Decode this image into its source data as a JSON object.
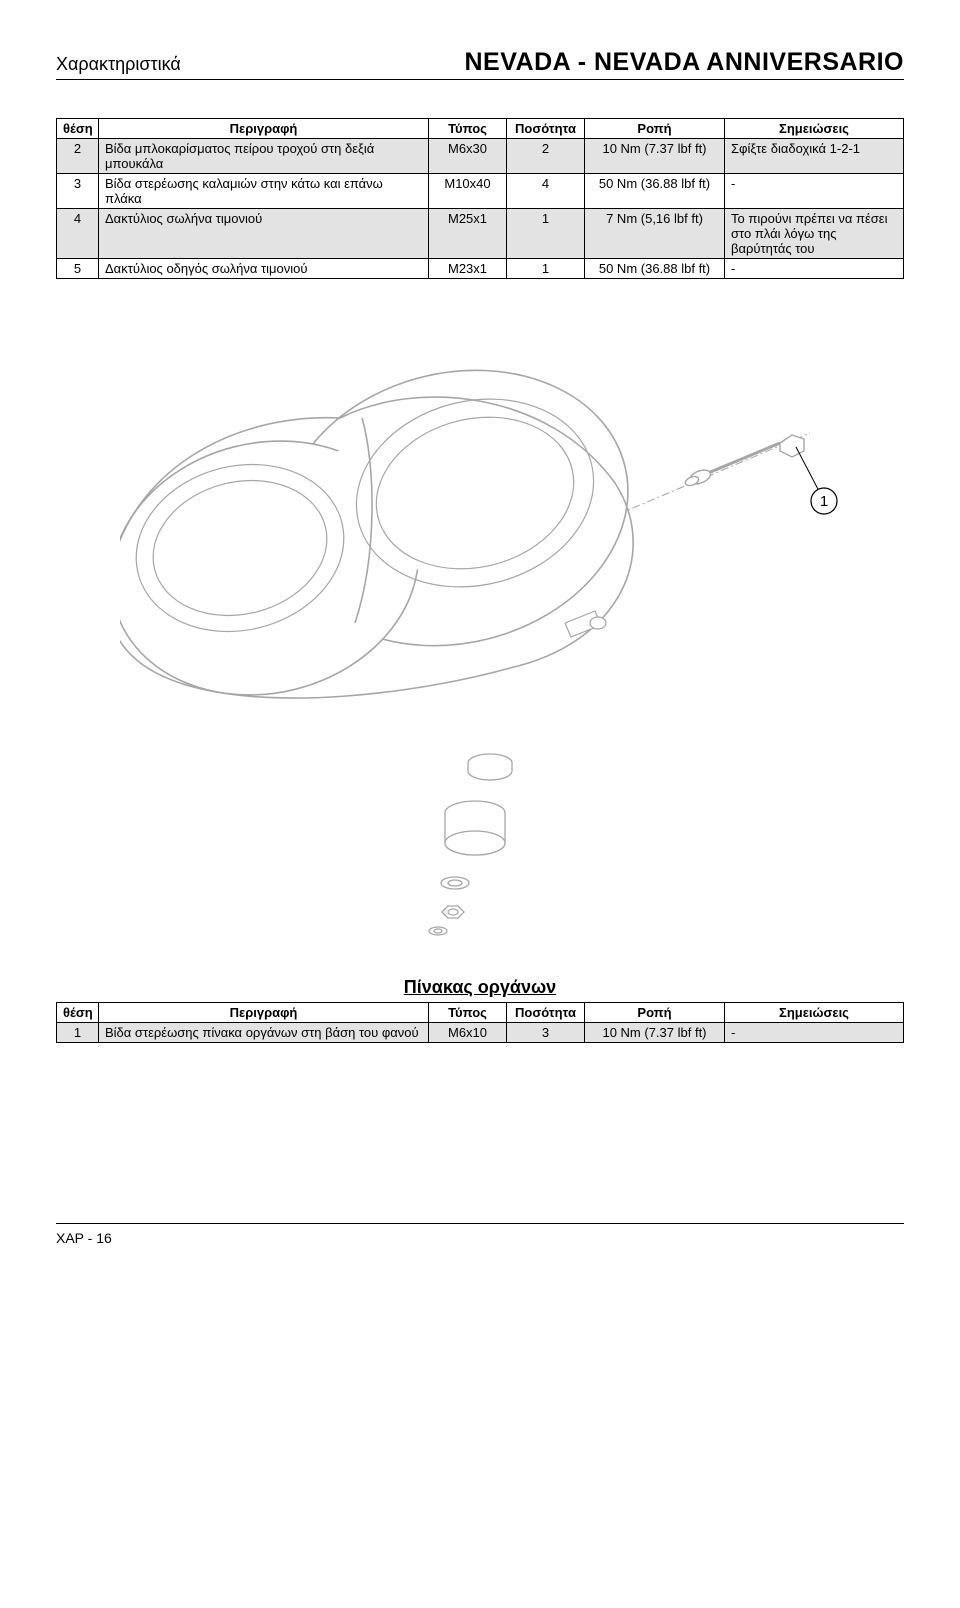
{
  "header": {
    "left": "Χαρακτηριστικά",
    "right": "NEVADA - NEVADA ANNIVERSARIO"
  },
  "table1": {
    "headers": {
      "pos": "θέση",
      "desc": "Περιγραφή",
      "type": "Τύπος",
      "qty": "Ποσότητα",
      "torque": "Ροπή",
      "note": "Σημειώσεις"
    },
    "rows": [
      {
        "pos": "2",
        "desc": "Βίδα μπλοκαρίσματος πείρου τροχού στη δεξιά μπουκάλα",
        "type": "M6x30",
        "qty": "2",
        "torque": "10 Nm (7.37 lbf ft)",
        "note": "Σφίξτε διαδοχικά 1-2-1",
        "shaded": true
      },
      {
        "pos": "3",
        "desc": "Βίδα στερέωσης καλαμιών στην κάτω και επάνω πλάκα",
        "type": "M10x40",
        "qty": "4",
        "torque": "50 Nm (36.88 lbf ft)",
        "note": "-",
        "shaded": false
      },
      {
        "pos": "4",
        "desc": "Δακτύλιος σωλήνα τιμονιού",
        "type": "M25x1",
        "qty": "1",
        "torque": "7 Nm (5,16 lbf ft)",
        "note": "Το πιρούνι πρέπει να πέσει στο πλάι λόγω της βαρύτητάς του",
        "shaded": true
      },
      {
        "pos": "5",
        "desc": "Δακτύλιος οδηγός σωλήνα τιμονιού",
        "type": "M23x1",
        "qty": "1",
        "torque": "50 Nm (36.88 lbf ft)",
        "note": "-",
        "shaded": false
      }
    ]
  },
  "diagram": {
    "callout_label": "1",
    "stroke_gray": "#a6a6a6",
    "stroke_black": "#000000"
  },
  "section2": {
    "title": "Πίνακας οργάνων"
  },
  "table2": {
    "headers": {
      "pos": "θέση",
      "desc": "Περιγραφή",
      "type": "Τύπος",
      "qty": "Ποσότητα",
      "torque": "Ροπή",
      "note": "Σημειώσεις"
    },
    "rows": [
      {
        "pos": "1",
        "desc": "Βίδα στερέωσης πίνακα οργάνων στη βάση του φανού",
        "type": "M6x10",
        "qty": "3",
        "torque": "10 Nm (7.37 lbf ft)",
        "note": "-",
        "shaded": true
      }
    ]
  },
  "footer": {
    "text": "ΧΑΡ - 16"
  }
}
